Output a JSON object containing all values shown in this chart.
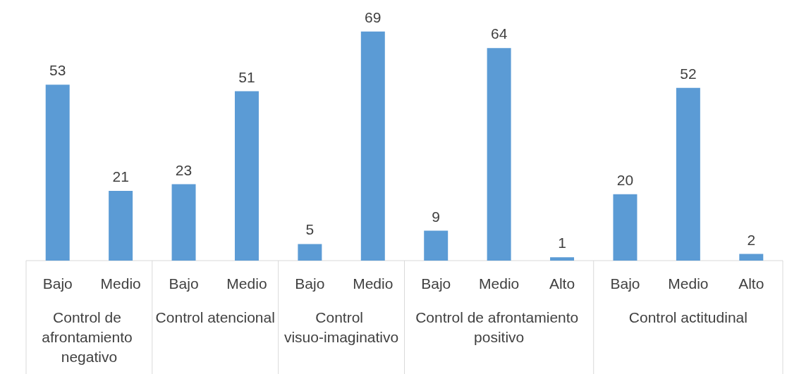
{
  "chart_data": {
    "type": "bar",
    "categories": [
      "Bajo",
      "Medio",
      "Bajo",
      "Medio",
      "Bajo",
      "Medio",
      "Bajo",
      "Medio",
      "Alto",
      "Bajo",
      "Medio",
      "Alto"
    ],
    "values": [
      53,
      21,
      23,
      51,
      5,
      69,
      9,
      64,
      1,
      20,
      52,
      2
    ],
    "color": "#5b9bd5",
    "data_labels": true,
    "annotations": [
      "Control de afrontamiento negativo",
      "Control atencional",
      "Control visuo-imaginativo",
      "Control de afrontamiento positivo",
      "Control actitudinal"
    ]
  }
}
